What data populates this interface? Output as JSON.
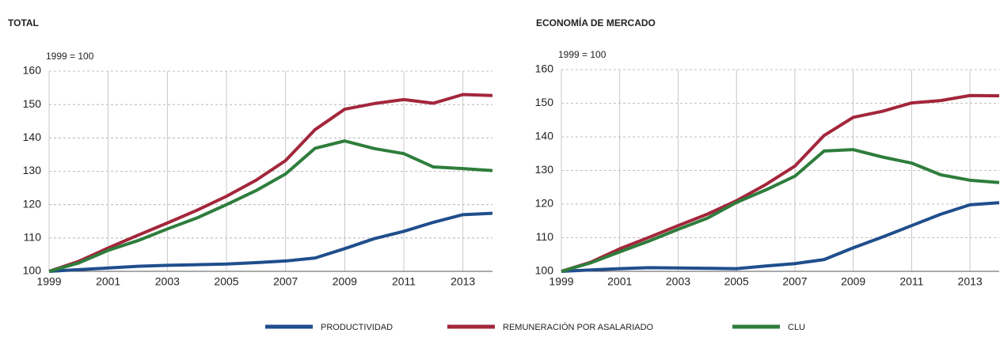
{
  "chart_data": [
    {
      "type": "line",
      "title": "TOTAL",
      "y_label": "1999 = 100",
      "x": [
        1999,
        2000,
        2001,
        2002,
        2003,
        2004,
        2005,
        2006,
        2007,
        2008,
        2009,
        2010,
        2011,
        2012,
        2013,
        2014
      ],
      "xlim": [
        1999,
        2014
      ],
      "xticks": [
        1999,
        2001,
        2003,
        2005,
        2007,
        2009,
        2011,
        2013
      ],
      "ylim": [
        100,
        160
      ],
      "yticks": [
        100,
        110,
        120,
        130,
        140,
        150,
        160
      ],
      "grid": true,
      "series": [
        {
          "name": "PRODUCTIVIDAD",
          "color": "#1f4e8c",
          "values": [
            100,
            100.5,
            101,
            101.5,
            101.8,
            102,
            102.2,
            102.6,
            103.1,
            104,
            106.8,
            109.8,
            112,
            114.7,
            117,
            117.4
          ]
        },
        {
          "name": "REMUNERACIÓN POR ASALARIADO",
          "color": "#a3263b",
          "values": [
            100,
            103,
            107,
            110.8,
            114.5,
            118.3,
            122.5,
            127.3,
            133.2,
            142.5,
            148.6,
            150.3,
            151.5,
            150.4,
            153,
            152.7
          ]
        },
        {
          "name": "CLU",
          "color": "#2e7d3c",
          "values": [
            100,
            102.5,
            106.3,
            109.2,
            112.7,
            116,
            120,
            124.2,
            129.2,
            136.9,
            139.1,
            136.8,
            135.3,
            131.3,
            130.8,
            130.2
          ]
        }
      ]
    },
    {
      "type": "line",
      "title": "ECONOMÍA DE MERCADO",
      "y_label": "1999 = 100",
      "x": [
        1999,
        2000,
        2001,
        2002,
        2003,
        2004,
        2005,
        2006,
        2007,
        2008,
        2009,
        2010,
        2011,
        2012,
        2013,
        2014
      ],
      "xlim": [
        1999,
        2014
      ],
      "xticks": [
        1999,
        2001,
        2003,
        2005,
        2007,
        2009,
        2011,
        2013
      ],
      "ylim": [
        100,
        160
      ],
      "yticks": [
        100,
        110,
        120,
        130,
        140,
        150,
        160
      ],
      "grid": true,
      "series": [
        {
          "color": "#1f4e8c",
          "values": [
            100,
            100.4,
            100.8,
            101.1,
            101,
            100.9,
            100.8,
            101.6,
            102.3,
            103.5,
            107,
            110.2,
            113.6,
            117,
            119.8,
            120.4
          ]
        },
        {
          "color": "#a3263b",
          "values": [
            100,
            102.7,
            106.7,
            110.1,
            113.6,
            117,
            121,
            125.8,
            131.3,
            140.4,
            145.8,
            147.6,
            150.1,
            150.8,
            152.3,
            152.2
          ]
        },
        {
          "color": "#2e7d3c",
          "values": [
            100,
            102.5,
            105.8,
            109,
            112.5,
            115.8,
            120.5,
            124.2,
            128.3,
            135.8,
            136.2,
            134,
            132.2,
            128.7,
            127.1,
            126.4
          ]
        }
      ]
    }
  ]
}
